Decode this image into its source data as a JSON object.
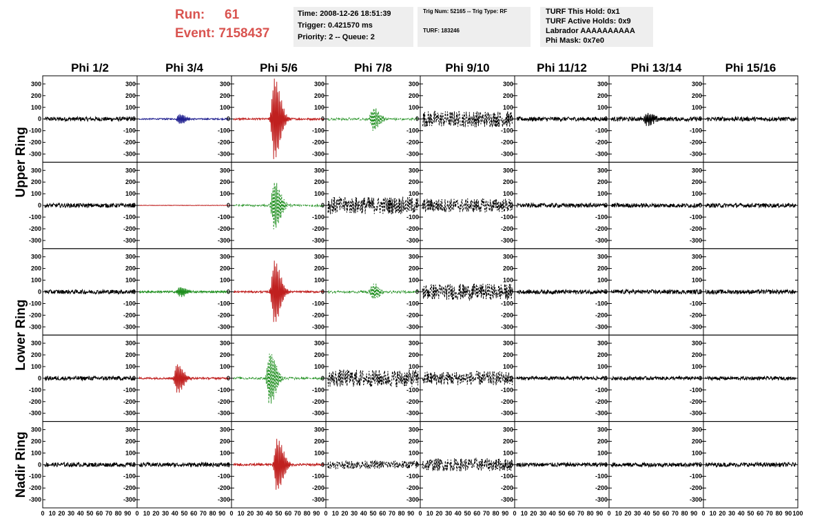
{
  "header": {
    "run_label": "Run:",
    "run_value": "61",
    "event_label": "Event:",
    "event_value": "7158437",
    "time": "Time: 2008-12-26 18:51:39",
    "trigger": "Trigger: 0.421570 ms",
    "priority": "Priority: 2 -- Queue: 2",
    "trig_num": "Trig Num: 52165 -- Trig Type: RF",
    "turf": "TURF: 183246",
    "turf_hold": "TURF This Hold: 0x1",
    "turf_active": "TURF Active Holds: 0x9",
    "labrador": "Labrador AAAAAAAAAA",
    "phi_mask": "Phi Mask: 0x7e0"
  },
  "colors": {
    "black": "#000000",
    "blue": "#1f1f8f",
    "red": "#c0201f",
    "green": "#1f8f1f",
    "title": "#d9534f"
  },
  "chart_data": {
    "type": "line",
    "columns": [
      "Phi 1/2",
      "Phi 3/4",
      "Phi 5/6",
      "Phi 7/8",
      "Phi 9/10",
      "Phi 11/12",
      "Phi 13/14",
      "Phi 15/16"
    ],
    "rows": [
      "Upper Ring",
      "Lower Ring",
      "Nadir Ring"
    ],
    "ylim": [
      -370,
      370
    ],
    "xlim": [
      0,
      100
    ],
    "y_ticks": [
      300,
      200,
      100,
      0,
      -100,
      -200,
      -300
    ],
    "y_tick_labels": [
      "300",
      "200",
      "100",
      "0",
      "-100",
      "-200",
      "-300"
    ],
    "x_tick_labels": [
      "0",
      "10",
      "20",
      "30",
      "40",
      "50",
      "60",
      "70",
      "80",
      "90",
      "100"
    ],
    "panels": [
      [
        {
          "color": "black",
          "dashed": false,
          "amp": 18,
          "peak": 0,
          "center": 0
        },
        {
          "color": "blue",
          "dashed": false,
          "amp": 6,
          "peak": 45,
          "center": 45
        },
        {
          "color": "red",
          "dashed": false,
          "amp": 8,
          "peak": 360,
          "center": 45
        },
        {
          "color": "green",
          "dashed": true,
          "amp": 10,
          "peak": 100,
          "center": 50
        },
        {
          "color": "black",
          "dashed": true,
          "amp": 70,
          "peak": 0,
          "center": 0
        },
        {
          "color": "black",
          "dashed": false,
          "amp": 18,
          "peak": 0,
          "center": 0
        },
        {
          "color": "black",
          "dashed": false,
          "amp": 18,
          "peak": 60,
          "center": 40
        },
        {
          "color": "black",
          "dashed": false,
          "amp": 18,
          "peak": 0,
          "center": 0
        }
      ],
      [
        {
          "color": "black",
          "dashed": false,
          "amp": 18,
          "peak": 0,
          "center": 0
        },
        {
          "color": "red",
          "dashed": false,
          "amp": 2,
          "peak": 0,
          "center": 0
        },
        {
          "color": "green",
          "dashed": true,
          "amp": 8,
          "peak": 210,
          "center": 45
        },
        {
          "color": "black",
          "dashed": true,
          "amp": 75,
          "peak": 0,
          "center": 0
        },
        {
          "color": "black",
          "dashed": true,
          "amp": 60,
          "peak": 0,
          "center": 0
        },
        {
          "color": "black",
          "dashed": false,
          "amp": 18,
          "peak": 0,
          "center": 0
        },
        {
          "color": "black",
          "dashed": false,
          "amp": 18,
          "peak": 0,
          "center": 0
        },
        {
          "color": "black",
          "dashed": false,
          "amp": 18,
          "peak": 0,
          "center": 0
        }
      ],
      [
        {
          "color": "black",
          "dashed": false,
          "amp": 18,
          "peak": 0,
          "center": 0
        },
        {
          "color": "green",
          "dashed": false,
          "amp": 8,
          "peak": 45,
          "center": 45
        },
        {
          "color": "red",
          "dashed": false,
          "amp": 8,
          "peak": 280,
          "center": 45
        },
        {
          "color": "green",
          "dashed": true,
          "amp": 10,
          "peak": 70,
          "center": 50
        },
        {
          "color": "black",
          "dashed": true,
          "amp": 70,
          "peak": 0,
          "center": 0
        },
        {
          "color": "black",
          "dashed": false,
          "amp": 18,
          "peak": 0,
          "center": 0
        },
        {
          "color": "black",
          "dashed": false,
          "amp": 18,
          "peak": 0,
          "center": 0
        },
        {
          "color": "black",
          "dashed": false,
          "amp": 18,
          "peak": 0,
          "center": 0
        }
      ],
      [
        {
          "color": "black",
          "dashed": false,
          "amp": 18,
          "peak": 0,
          "center": 0
        },
        {
          "color": "red",
          "dashed": false,
          "amp": 8,
          "peak": 130,
          "center": 42
        },
        {
          "color": "green",
          "dashed": true,
          "amp": 10,
          "peak": 230,
          "center": 40
        },
        {
          "color": "black",
          "dashed": true,
          "amp": 75,
          "peak": 0,
          "center": 0
        },
        {
          "color": "black",
          "dashed": true,
          "amp": 60,
          "peak": 0,
          "center": 0
        },
        {
          "color": "black",
          "dashed": false,
          "amp": 15,
          "peak": 0,
          "center": 0
        },
        {
          "color": "black",
          "dashed": false,
          "amp": 15,
          "peak": 0,
          "center": 0
        },
        {
          "color": "black",
          "dashed": false,
          "amp": 15,
          "peak": 0,
          "center": 0
        }
      ],
      [
        {
          "color": "black",
          "dashed": false,
          "amp": 18,
          "peak": 0,
          "center": 0
        },
        {
          "color": "black",
          "dashed": false,
          "amp": 18,
          "peak": 0,
          "center": 0
        },
        {
          "color": "red",
          "dashed": false,
          "amp": 10,
          "peak": 230,
          "center": 48
        },
        {
          "color": "black",
          "dashed": true,
          "amp": 35,
          "peak": 0,
          "center": 0
        },
        {
          "color": "black",
          "dashed": true,
          "amp": 55,
          "peak": 0,
          "center": 0
        },
        {
          "color": "black",
          "dashed": false,
          "amp": 18,
          "peak": 0,
          "center": 0
        },
        {
          "color": "black",
          "dashed": false,
          "amp": 18,
          "peak": 0,
          "center": 0
        },
        {
          "color": "black",
          "dashed": false,
          "amp": 18,
          "peak": 0,
          "center": 0
        }
      ]
    ]
  }
}
